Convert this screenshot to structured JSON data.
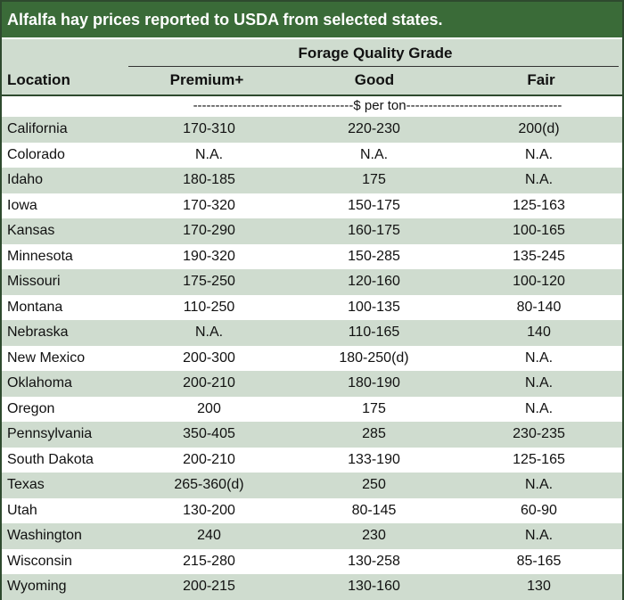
{
  "title": "Alfalfa hay prices reported to USDA from selected states.",
  "header": {
    "group_label": "Forage Quality Grade",
    "location_label": "Location",
    "columns": [
      "Premium+",
      "Good",
      "Fair"
    ]
  },
  "unit_row": "------------------------------------$ per ton-----------------------------------",
  "rows": [
    {
      "location": "California",
      "premium": "170-310",
      "good": "220-230",
      "fair": "200(d)"
    },
    {
      "location": "Colorado",
      "premium": "N.A.",
      "good": "N.A.",
      "fair": "N.A."
    },
    {
      "location": "Idaho",
      "premium": "180-185",
      "good": "175",
      "fair": "N.A."
    },
    {
      "location": "Iowa",
      "premium": "170-320",
      "good": "150-175",
      "fair": "125-163"
    },
    {
      "location": "Kansas",
      "premium": "170-290",
      "good": "160-175",
      "fair": "100-165"
    },
    {
      "location": "Minnesota",
      "premium": "190-320",
      "good": "150-285",
      "fair": "135-245"
    },
    {
      "location": "Missouri",
      "premium": "175-250",
      "good": "120-160",
      "fair": "100-120"
    },
    {
      "location": "Montana",
      "premium": "110-250",
      "good": "100-135",
      "fair": "80-140"
    },
    {
      "location": "Nebraska",
      "premium": "N.A.",
      "good": "110-165",
      "fair": "140"
    },
    {
      "location": "New Mexico",
      "premium": "200-300",
      "good": "180-250(d)",
      "fair": "N.A."
    },
    {
      "location": "Oklahoma",
      "premium": "200-210",
      "good": "180-190",
      "fair": "N.A."
    },
    {
      "location": "Oregon",
      "premium": "200",
      "good": "175",
      "fair": "N.A."
    },
    {
      "location": "Pennsylvania",
      "premium": "350-405",
      "good": "285",
      "fair": "230-235"
    },
    {
      "location": "South Dakota",
      "premium": "200-210",
      "good": "133-190",
      "fair": "125-165"
    },
    {
      "location": "Texas",
      "premium": "265-360(d)",
      "good": "250",
      "fair": "N.A."
    },
    {
      "location": "Utah",
      "premium": "130-200",
      "good": "80-145",
      "fair": "60-90"
    },
    {
      "location": "Washington",
      "premium": "240",
      "good": "230",
      "fair": "N.A."
    },
    {
      "location": "Wisconsin",
      "premium": "215-280",
      "good": "130-258",
      "fair": "85-165"
    },
    {
      "location": "Wyoming",
      "premium": "200-215",
      "good": "130-160",
      "fair": "130"
    }
  ],
  "colors": {
    "title_bg": "#3a6b38",
    "shaded_row": "#cfdccf",
    "border": "#2e4a2e"
  }
}
